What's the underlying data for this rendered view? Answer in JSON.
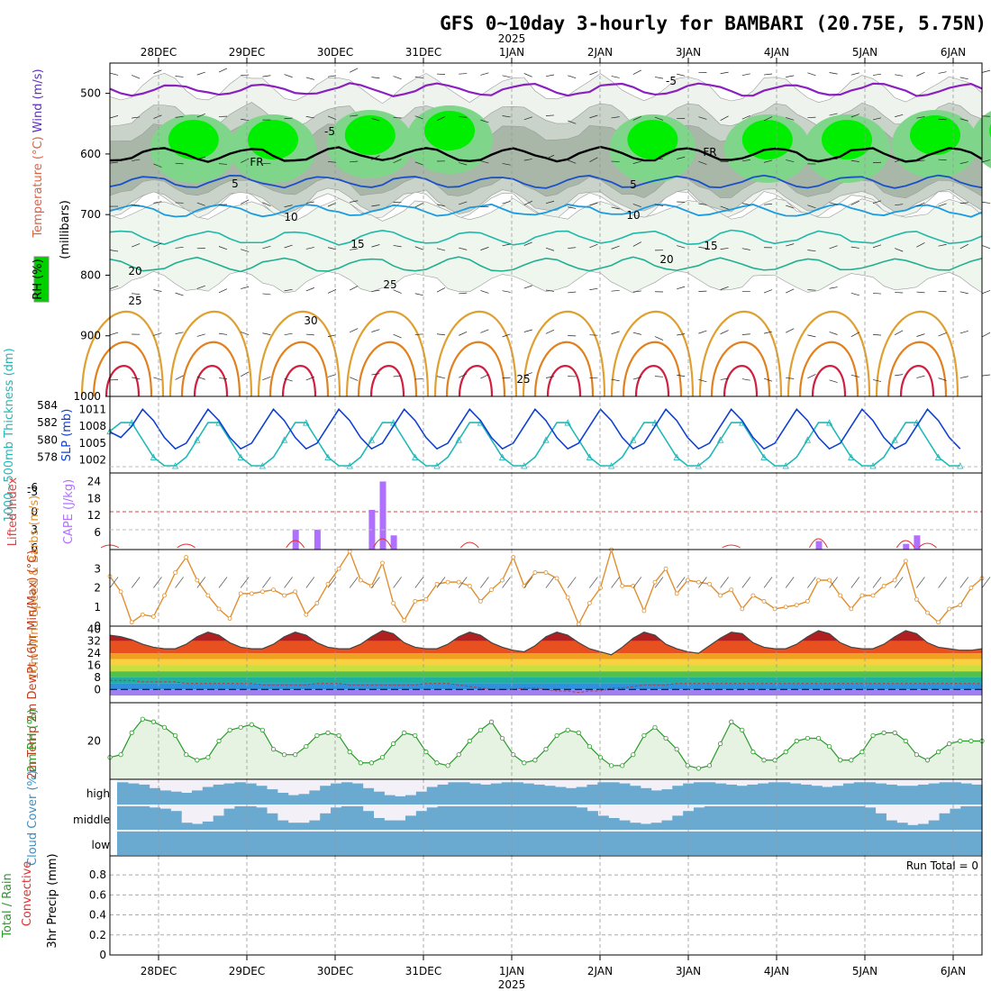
{
  "title": "GFS 0~10day 3-hourly for BAMBARI (20.75E, 5.75N)",
  "year_label": "2025",
  "date_labels": [
    "28DEC",
    "29DEC",
    "30DEC",
    "31DEC",
    "1JAN",
    "2JAN",
    "3JAN",
    "4JAN",
    "5JAN",
    "6JAN"
  ],
  "run_total_label": "Run Total = 0",
  "colors": {
    "temp_warm": "#d89020",
    "temp_cool": "#20b0a0",
    "temp_cold": "#2050d0",
    "rh_green": "#00dd00",
    "slp": "#1040d0",
    "thickness": "#20b8b8",
    "cape": "#b070ff",
    "lifted": "#e03030",
    "wind": "#e09030",
    "cloud": "#6aaad0",
    "rh2m": "#2a9a2a"
  },
  "chart_data": [
    {
      "type": "heatmap",
      "panel": "upper-air",
      "ylabel_parts": [
        "RH (%)",
        "Temperature (°C)",
        "Wind (m/s)",
        "(millibars)"
      ],
      "y_ticks": [
        "500",
        "600",
        "700",
        "800",
        "900",
        "1000"
      ],
      "ylim": [
        1000,
        450
      ],
      "contour_labels": [
        "-5",
        "-5",
        "FR",
        "FR",
        "5",
        "5",
        "10",
        "10",
        "15",
        "15",
        "20",
        "20",
        "25",
        "25",
        "30",
        "25"
      ]
    },
    {
      "type": "line",
      "panel": "slp-thickness",
      "ylabel_left": "1000~500mb Thickness (dm)",
      "ylabel_right": "SLP (mb)",
      "left_ticks": [
        "578",
        "580",
        "582",
        "584"
      ],
      "right_ticks": [
        "1002",
        "1005",
        "1008",
        "1011"
      ],
      "series": [
        {
          "name": "SLP (mb)",
          "values": [
            1007,
            1006,
            1008,
            1011,
            1009,
            1006,
            1004,
            1005,
            1008,
            1011,
            1009,
            1006,
            1004,
            1005,
            1008,
            1011,
            1009,
            1006,
            1004,
            1005,
            1008,
            1011,
            1009,
            1006,
            1004,
            1005,
            1008,
            1011,
            1009,
            1006,
            1004,
            1005,
            1008,
            1011,
            1009,
            1006,
            1004,
            1005,
            1008,
            1011,
            1009,
            1006,
            1004,
            1005,
            1008,
            1011,
            1009,
            1006,
            1004,
            1005,
            1008,
            1011,
            1009,
            1006,
            1004,
            1005,
            1008,
            1011,
            1009,
            1006,
            1004,
            1005,
            1008,
            1011,
            1009,
            1006,
            1004,
            1005,
            1008,
            1011,
            1009,
            1006,
            1004,
            1005,
            1008,
            1011,
            1009,
            1006,
            1004
          ]
        },
        {
          "name": "1000~500mb Thickness (dm)",
          "values": [
            581,
            582,
            582,
            580,
            578,
            577,
            577,
            578,
            580,
            582,
            582,
            580,
            578,
            577,
            577,
            578,
            580,
            582,
            582,
            580,
            578,
            577,
            577,
            578,
            580,
            582,
            582,
            580,
            578,
            577,
            577,
            578,
            580,
            582,
            582,
            580,
            578,
            577,
            577,
            578,
            580,
            582,
            582,
            580,
            578,
            577,
            577,
            578,
            580,
            582,
            582,
            580,
            578,
            577,
            577,
            578,
            580,
            582,
            582,
            580,
            578,
            577,
            577,
            578,
            580,
            582,
            582,
            580,
            578,
            577,
            577,
            578,
            580,
            582,
            582,
            580,
            578,
            577,
            577
          ]
        }
      ]
    },
    {
      "type": "bar",
      "panel": "cape-li",
      "ylabel_left": "Lifted Index",
      "ylabel_right": "CAPE (J/kg)",
      "cape_ticks": [
        "6",
        "12",
        "18",
        "24"
      ],
      "li_ticks": [
        "-6",
        "-3",
        "0",
        "3",
        "6"
      ],
      "cape_bars": [
        {
          "i": 17,
          "v": 7
        },
        {
          "i": 19,
          "v": 7
        },
        {
          "i": 24,
          "v": 14
        },
        {
          "i": 25,
          "v": 24
        },
        {
          "i": 26,
          "v": 5
        },
        {
          "i": 65,
          "v": 3
        },
        {
          "i": 73,
          "v": 2
        },
        {
          "i": 74,
          "v": 5
        }
      ]
    },
    {
      "type": "line",
      "panel": "wind10m",
      "ylabel": "10m Wind Speed & Barbs (m/s)",
      "y_ticks": [
        "0",
        "1",
        "2",
        "3"
      ],
      "ylim": [
        0,
        4
      ],
      "series": [
        {
          "name": "10m Wind Speed",
          "values": [
            2.6,
            1.8,
            0.2,
            0.6,
            0.5,
            1.6,
            2.8,
            3.6,
            2.4,
            1.6,
            0.9,
            0.4,
            1.7,
            1.7,
            1.8,
            1.9,
            1.6,
            1.8,
            0.6,
            1.2,
            2.2,
            3.0,
            3.9,
            2.4,
            2.1,
            3.3,
            1.2,
            0.3,
            1.3,
            1.4,
            2.2,
            2.3,
            2.3,
            2.1,
            1.3,
            1.9,
            2.4,
            3.6,
            2.1,
            2.8,
            2.8,
            2.5,
            1.5,
            0.1,
            1.2,
            2.0,
            4.0,
            2.1,
            2.1,
            0.8,
            2.3,
            3.0,
            1.7,
            2.4,
            2.3,
            2.2,
            1.6,
            1.9,
            0.9,
            1.6,
            1.3,
            0.9,
            1.0,
            1.1,
            1.3,
            2.4,
            2.4,
            1.6,
            0.9,
            1.6,
            1.6,
            2.1,
            2.4,
            3.4,
            1.4,
            0.7,
            0.2,
            0.9,
            1.1,
            2.0,
            2.5
          ]
        }
      ]
    },
    {
      "type": "area",
      "panel": "temp2m",
      "ylabel": "2m Temp 2m DewPt (6hr Min/Max) (°C)",
      "y_ticks": [
        "0",
        "8",
        "16",
        "24",
        "32",
        "40"
      ],
      "ylim": [
        -4,
        42
      ],
      "series": [
        {
          "name": "2m Temp",
          "values": [
            36,
            35,
            33,
            30,
            28,
            27,
            27,
            30,
            35,
            38,
            36,
            31,
            28,
            27,
            27,
            30,
            35,
            38,
            36,
            31,
            28,
            27,
            27,
            30,
            35,
            39,
            37,
            31,
            28,
            27,
            27,
            30,
            35,
            38,
            36,
            31,
            28,
            26,
            25,
            29,
            35,
            38,
            36,
            31,
            27,
            25,
            23,
            28,
            34,
            38,
            36,
            30,
            27,
            25,
            24,
            29,
            34,
            38,
            37,
            31,
            28,
            27,
            27,
            30,
            35,
            39,
            37,
            31,
            28,
            27,
            27,
            30,
            35,
            39,
            37,
            31,
            28,
            27,
            26,
            26,
            27
          ]
        },
        {
          "name": "2m DewPt",
          "values": [
            6,
            6,
            6,
            5,
            5,
            5,
            5,
            4,
            4,
            4,
            4,
            4,
            4,
            4,
            3,
            3,
            3,
            3,
            3,
            4,
            4,
            4,
            3,
            3,
            3,
            3,
            3,
            3,
            3,
            4,
            4,
            4,
            3,
            2,
            1,
            0,
            0,
            0,
            1,
            1,
            0,
            -1,
            -1,
            -2,
            -1,
            -1,
            1,
            1,
            2,
            3,
            3,
            3,
            4,
            4,
            4,
            4,
            4,
            4,
            4,
            4,
            4,
            4,
            4,
            4,
            4,
            4,
            4,
            4,
            4,
            4,
            4,
            4,
            4,
            4,
            4,
            4,
            4,
            4,
            4,
            4,
            4
          ]
        }
      ]
    },
    {
      "type": "line",
      "panel": "rh2m",
      "ylabel": "2m RH (%)",
      "y_ticks": [
        "20"
      ],
      "ylim": [
        6,
        34
      ],
      "series": [
        {
          "name": "2m RH",
          "values": [
            14,
            15,
            23,
            28,
            27,
            25,
            22,
            15,
            13,
            14,
            20,
            24,
            25,
            26,
            24,
            17,
            15,
            15,
            18,
            22,
            23,
            22,
            16,
            12,
            12,
            14,
            19,
            23,
            22,
            16,
            12,
            11,
            15,
            20,
            24,
            27,
            21,
            15,
            12,
            13,
            17,
            22,
            24,
            23,
            18,
            14,
            11,
            11,
            15,
            22,
            25,
            21,
            17,
            11,
            10,
            11,
            19,
            27,
            24,
            16,
            13,
            13,
            16,
            20,
            21,
            21,
            18,
            13,
            13,
            16,
            22,
            23,
            23,
            20,
            15,
            13,
            16,
            19,
            20,
            20,
            20
          ]
        }
      ]
    },
    {
      "type": "area",
      "panel": "cloud",
      "ylabel": "Cloud Cover (%)",
      "y_ticks": [
        "high",
        "middle",
        "low"
      ],
      "series": [
        {
          "name": "high",
          "values": [
            95,
            90,
            85,
            70,
            60,
            55,
            50,
            60,
            75,
            85,
            90,
            95,
            90,
            80,
            65,
            50,
            40,
            45,
            60,
            80,
            90,
            95,
            90,
            70,
            55,
            40,
            35,
            40,
            55,
            75,
            85,
            95,
            95,
            90,
            85,
            90,
            95,
            95,
            90,
            85,
            80,
            75,
            70,
            75,
            85,
            95,
            95,
            90,
            80,
            70,
            60,
            65,
            80,
            90,
            95,
            95,
            90,
            85,
            80,
            85,
            90,
            95,
            95,
            90,
            85,
            80,
            75,
            80,
            90,
            95,
            95,
            90,
            85,
            80,
            80,
            85,
            90,
            95,
            95,
            90,
            85
          ]
        },
        {
          "name": "middle",
          "values": [
            100,
            100,
            100,
            95,
            90,
            80,
            30,
            25,
            35,
            60,
            90,
            100,
            100,
            95,
            70,
            40,
            30,
            30,
            40,
            70,
            95,
            100,
            100,
            80,
            50,
            40,
            40,
            60,
            80,
            95,
            100,
            100,
            100,
            100,
            100,
            100,
            100,
            100,
            100,
            100,
            100,
            100,
            100,
            95,
            80,
            60,
            50,
            40,
            30,
            25,
            30,
            40,
            60,
            80,
            95,
            100,
            100,
            100,
            100,
            100,
            100,
            100,
            100,
            100,
            100,
            100,
            100,
            100,
            100,
            100,
            95,
            70,
            40,
            30,
            20,
            25,
            40,
            70,
            90,
            100,
            100
          ]
        },
        {
          "name": "low",
          "values": [
            100,
            100,
            100,
            100,
            100,
            100,
            100,
            100,
            100,
            100,
            100,
            100,
            100,
            100,
            100,
            100,
            100,
            100,
            100,
            100,
            100,
            100,
            100,
            100,
            100,
            100,
            100,
            100,
            100,
            100,
            100,
            100,
            100,
            100,
            100,
            100,
            100,
            100,
            100,
            100,
            100,
            100,
            100,
            100,
            100,
            100,
            100,
            100,
            100,
            100,
            100,
            100,
            100,
            100,
            100,
            100,
            100,
            100,
            100,
            100,
            100,
            100,
            100,
            100,
            100,
            100,
            100,
            100,
            100,
            100,
            100,
            100,
            100,
            100,
            100,
            100,
            100,
            100,
            100,
            100,
            100
          ]
        }
      ]
    },
    {
      "type": "bar",
      "panel": "precip",
      "ylabel_parts": [
        "Total / Rain",
        "Convective",
        "3hr Precip (mm)"
      ],
      "y_ticks": [
        "0",
        "0.2",
        "0.4",
        "0.6",
        "0.8"
      ],
      "ylim": [
        0,
        0.9
      ],
      "values": []
    }
  ]
}
